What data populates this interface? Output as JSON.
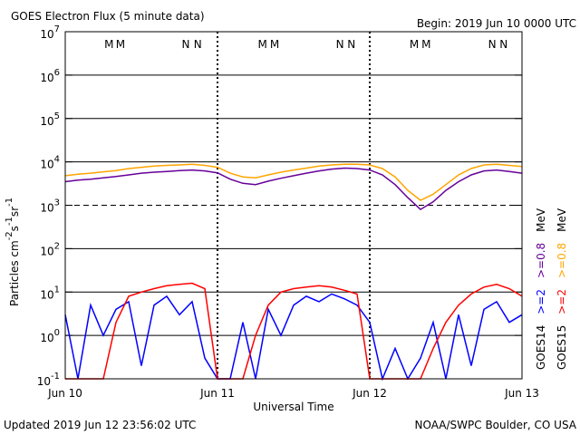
{
  "chart_data": {
    "type": "line",
    "title": "GOES Electron Flux (5 minute data)",
    "subtitle": "Begin: 2019 Jun 10 0000 UTC",
    "xlabel": "Universal Time",
    "ylabel": [
      {
        "text": "Particles cm"
      },
      {
        "text": "-2",
        "sup": true
      },
      {
        "text": "s"
      },
      {
        "text": "-1",
        "sup": true
      },
      {
        "text": "sr"
      },
      {
        "text": "-1",
        "sup": true
      }
    ],
    "footer_left": "Updated 2019 Jun 12 23:56:02 UTC",
    "footer_right": "NOAA/SWPC Boulder, CO USA",
    "log_y": true,
    "grid": true,
    "threshold": 1000,
    "legend_unit": "MeV",
    "xlim": [
      0,
      72
    ],
    "xticks": [
      {
        "value": 0,
        "label": "Jun 10"
      },
      {
        "value": 24,
        "label": "Jun 11"
      },
      {
        "value": 48,
        "label": "Jun 12"
      },
      {
        "value": 72,
        "label": "Jun 13"
      }
    ],
    "ylim": [
      0.1,
      10000000
    ],
    "yticks": [
      {
        "value": 0.1,
        "label": "10",
        "exp": "-1"
      },
      {
        "value": 1,
        "label": "10",
        "exp": "0"
      },
      {
        "value": 10,
        "label": "10",
        "exp": "1"
      },
      {
        "value": 100,
        "label": "10",
        "exp": "2"
      },
      {
        "value": 1000,
        "label": "10",
        "exp": "3"
      },
      {
        "value": 10000,
        "label": "10",
        "exp": "4"
      },
      {
        "value": 100000,
        "label": "10",
        "exp": "5"
      },
      {
        "value": 1000000,
        "label": "10",
        "exp": "6"
      },
      {
        "value": 10000000,
        "label": "10",
        "exp": "7"
      }
    ],
    "annotations": [
      {
        "text": "M",
        "x": 6.9,
        "color": "#0000ff"
      },
      {
        "text": "M",
        "x": 8.7,
        "color": "#ff0000"
      },
      {
        "text": "N",
        "x": 19.0,
        "color": "#0000ff"
      },
      {
        "text": "N",
        "x": 20.9,
        "color": "#ff0000"
      },
      {
        "text": "M",
        "x": 31.1,
        "color": "#0000ff"
      },
      {
        "text": "M",
        "x": 33.0,
        "color": "#ff0000"
      },
      {
        "text": "N",
        "x": 43.3,
        "color": "#0000ff"
      },
      {
        "text": "N",
        "x": 45.1,
        "color": "#ff0000"
      },
      {
        "text": "M",
        "x": 55.0,
        "color": "#0000ff"
      },
      {
        "text": "M",
        "x": 56.9,
        "color": "#ff0000"
      },
      {
        "text": "N",
        "x": 67.3,
        "color": "#0000ff"
      },
      {
        "text": "N",
        "x": 69.1,
        "color": "#ff0000"
      }
    ],
    "x": [
      0,
      2,
      4,
      6,
      8,
      10,
      12,
      14,
      16,
      18,
      20,
      22,
      24,
      26,
      28,
      30,
      32,
      34,
      36,
      38,
      40,
      42,
      44,
      46,
      48,
      50,
      52,
      54,
      56,
      58,
      60,
      62,
      64,
      66,
      68,
      70,
      72
    ],
    "series": [
      {
        "name": ">=2",
        "satellite": "GOES14",
        "color": "#0000ff",
        "values": [
          3,
          0.1,
          5,
          1,
          4,
          6,
          0.2,
          5,
          8,
          3,
          6,
          0.3,
          0.1,
          0.1,
          2,
          0.1,
          4,
          1,
          5,
          8,
          6,
          9,
          7,
          5,
          2,
          0.1,
          0.5,
          0.1,
          0.3,
          2,
          0.1,
          3,
          0.2,
          4,
          6,
          2,
          3
        ]
      },
      {
        "name": ">=0.8",
        "satellite": "GOES14",
        "color": "#660099",
        "values": [
          3500,
          3800,
          4000,
          4300,
          4600,
          5000,
          5500,
          5800,
          6000,
          6300,
          6500,
          6200,
          5600,
          4000,
          3200,
          3000,
          3600,
          4200,
          4800,
          5500,
          6200,
          6800,
          7200,
          7000,
          6500,
          5000,
          3000,
          1500,
          800,
          1200,
          2200,
          3500,
          5000,
          6200,
          6500,
          6000,
          5500
        ]
      },
      {
        "name": ">=2",
        "satellite": "GOES15",
        "color": "#ff0000",
        "values": [
          0.1,
          0.1,
          0.1,
          0.1,
          2,
          8,
          10,
          12,
          14,
          15,
          16,
          12,
          0.1,
          0.1,
          0.1,
          1,
          5,
          10,
          12,
          13,
          14,
          13,
          11,
          9,
          0.1,
          0.1,
          0.1,
          0.1,
          0.1,
          0.5,
          2,
          5,
          9,
          13,
          15,
          12,
          8
        ]
      },
      {
        "name": ">=0.8",
        "satellite": "GOES15",
        "color": "#ffa500",
        "values": [
          4800,
          5200,
          5500,
          5900,
          6300,
          7000,
          7500,
          8000,
          8300,
          8500,
          8800,
          8300,
          7500,
          5500,
          4500,
          4300,
          5000,
          5800,
          6500,
          7200,
          8000,
          8500,
          8800,
          8800,
          8500,
          7000,
          4500,
          2200,
          1300,
          1800,
          3000,
          5000,
          7000,
          8500,
          8800,
          8300,
          7800
        ]
      }
    ]
  }
}
